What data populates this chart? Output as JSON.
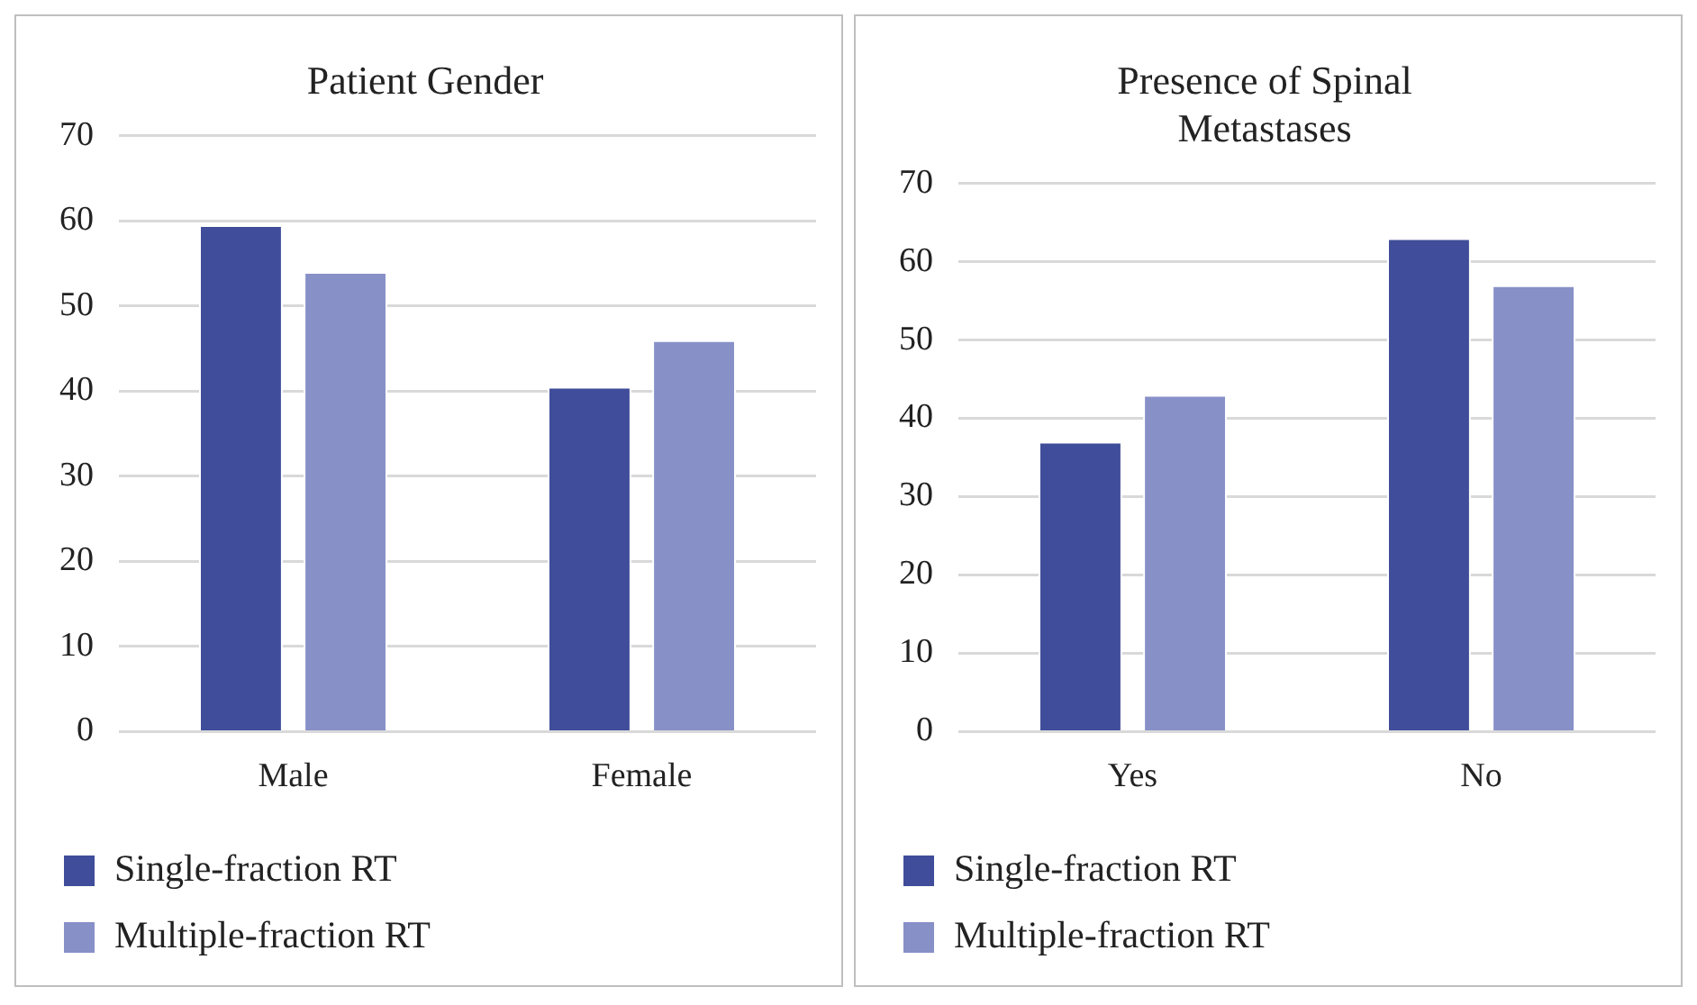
{
  "chart_data": [
    {
      "type": "bar",
      "title": "Patient Gender",
      "categories": [
        "Male",
        "Female"
      ],
      "series": [
        {
          "name": "Single-fraction RT",
          "color": "#3f4d9a",
          "values": [
            59.5,
            40.5
          ]
        },
        {
          "name": "Multiple-fraction RT",
          "color": "#8890c8",
          "values": [
            54,
            46
          ]
        }
      ],
      "ylim": [
        0,
        70
      ],
      "yticks": [
        0,
        10,
        20,
        30,
        40,
        50,
        60,
        70
      ],
      "grid": "y",
      "legend": "bottom"
    },
    {
      "type": "bar",
      "title": "Presence of Spinal Metastases",
      "categories": [
        "Yes",
        "No"
      ],
      "series": [
        {
          "name": "Single-fraction RT",
          "color": "#3f4d9a",
          "values": [
            37,
            63
          ]
        },
        {
          "name": "Multiple-fraction RT",
          "color": "#8890c8",
          "values": [
            43,
            57
          ]
        }
      ],
      "ylim": [
        0,
        70
      ],
      "yticks": [
        0,
        10,
        20,
        30,
        40,
        50,
        60,
        70
      ],
      "grid": "y",
      "legend": "bottom"
    }
  ]
}
